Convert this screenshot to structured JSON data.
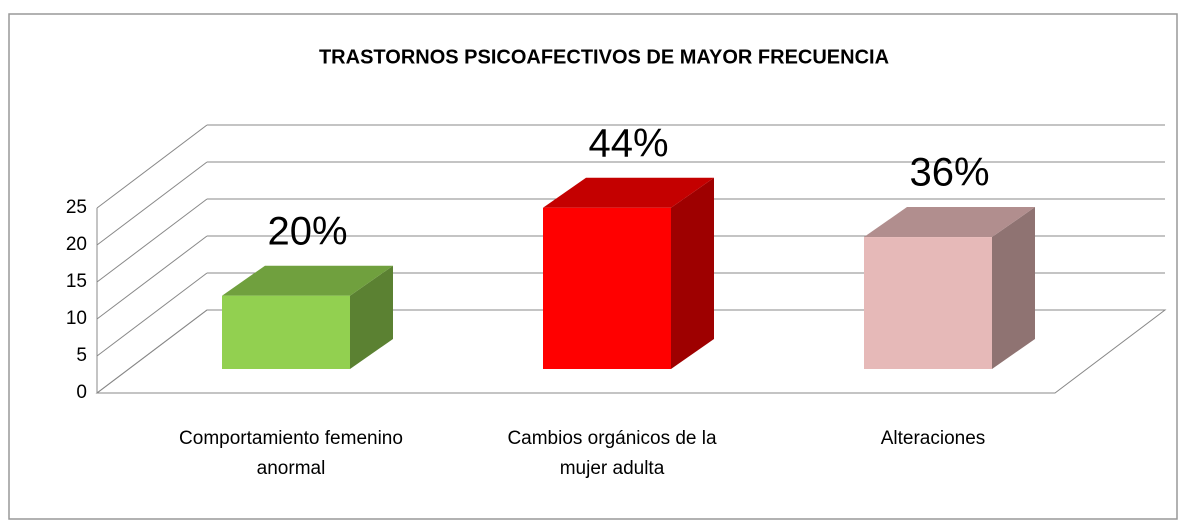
{
  "chart_data": {
    "type": "bar3d",
    "title": "TRASTORNOS  PSICOAFECTIVOS  DE MAYOR FRECUENCIA",
    "categories": [
      "Comportamiento femenino anormal",
      "Cambios orgánicos de la mujer adulta",
      "Alteraciones"
    ],
    "values": [
      10,
      22,
      18
    ],
    "value_labels": [
      "20%",
      "44%",
      "36%"
    ],
    "colors": [
      "#92d050",
      "#ff0000",
      "#e6b9b8"
    ],
    "ylim": [
      0,
      25
    ],
    "yticks": [
      0,
      5,
      10,
      15,
      20,
      25
    ],
    "grid": true
  }
}
